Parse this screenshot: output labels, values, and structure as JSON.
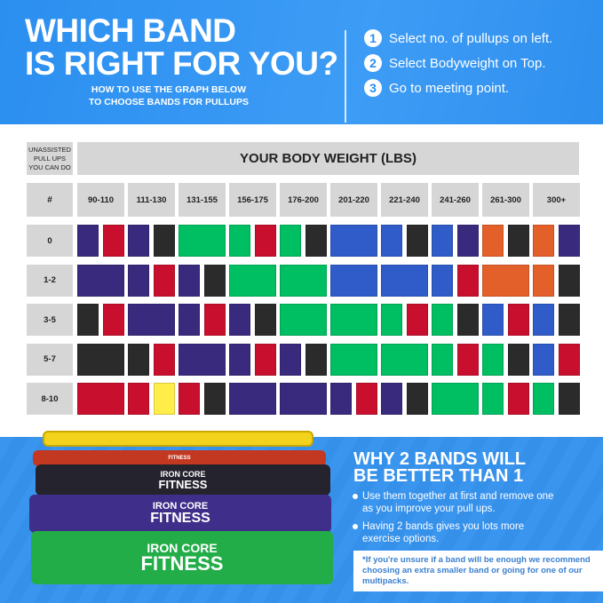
{
  "header": {
    "title_line1": "WHICH BAND",
    "title_line2": "IS RIGHT FOR YOU?",
    "subtitle_line1": "HOW TO USE THE GRAPH BELOW",
    "subtitle_line2": "TO CHOOSE BANDS FOR PULLUPS",
    "steps": [
      {
        "num": "1",
        "text": "Select no. of pullups on left."
      },
      {
        "num": "2",
        "text": "Select Bodyweight on Top."
      },
      {
        "num": "3",
        "text": "Go to meeting point."
      }
    ]
  },
  "chart_data": {
    "type": "table",
    "corner_label": "UNASSISTED PULL UPS YOU CAN DO",
    "column_header": "YOUR BODY WEIGHT (LBS)",
    "row_header": "#",
    "columns": [
      "90-110",
      "111-130",
      "131-155",
      "156-175",
      "176-200",
      "201-220",
      "221-240",
      "241-260",
      "261-300",
      "300+"
    ],
    "colors": {
      "purple": "#3a2a7e",
      "red": "#c8102e",
      "black": "#2b2b2b",
      "green": "#00bf63",
      "blue": "#2f5cc8",
      "orange": "#e4602a",
      "yellow": "#ffed4a"
    },
    "rows": [
      {
        "label": "0",
        "cells": [
          [
            "purple",
            "red"
          ],
          [
            "purple",
            "black"
          ],
          [
            "green"
          ],
          [
            "green",
            "red"
          ],
          [
            "green",
            "black"
          ],
          [
            "blue"
          ],
          [
            "blue",
            "black"
          ],
          [
            "blue",
            "purple"
          ],
          [
            "orange",
            "black"
          ],
          [
            "orange",
            "purple"
          ]
        ]
      },
      {
        "label": "1-2",
        "cells": [
          [
            "purple"
          ],
          [
            "purple",
            "red"
          ],
          [
            "purple",
            "black"
          ],
          [
            "green"
          ],
          [
            "green"
          ],
          [
            "blue"
          ],
          [
            "blue"
          ],
          [
            "blue",
            "red"
          ],
          [
            "orange"
          ],
          [
            "orange",
            "black"
          ]
        ]
      },
      {
        "label": "3-5",
        "cells": [
          [
            "black",
            "red"
          ],
          [
            "purple"
          ],
          [
            "purple",
            "red"
          ],
          [
            "purple",
            "black"
          ],
          [
            "green"
          ],
          [
            "green"
          ],
          [
            "green",
            "red"
          ],
          [
            "green",
            "black"
          ],
          [
            "blue",
            "red"
          ],
          [
            "blue",
            "black"
          ]
        ]
      },
      {
        "label": "5-7",
        "cells": [
          [
            "black"
          ],
          [
            "black",
            "red"
          ],
          [
            "purple"
          ],
          [
            "purple",
            "red"
          ],
          [
            "purple",
            "black"
          ],
          [
            "green"
          ],
          [
            "green"
          ],
          [
            "green",
            "red"
          ],
          [
            "green",
            "black"
          ],
          [
            "blue",
            "red"
          ]
        ]
      },
      {
        "label": "8-10",
        "cells": [
          [
            "red"
          ],
          [
            "red",
            "yellow"
          ],
          [
            "red",
            "black"
          ],
          [
            "purple"
          ],
          [
            "purple"
          ],
          [
            "purple",
            "red"
          ],
          [
            "purple",
            "black"
          ],
          [
            "green"
          ],
          [
            "green",
            "red"
          ],
          [
            "green",
            "black"
          ]
        ]
      }
    ]
  },
  "product": {
    "brand_line1": "IRON CORE",
    "brand_line2": "FITNESS"
  },
  "why": {
    "title_line1": "WHY 2 BANDS WILL",
    "title_line2": "BE BETTER THAN 1",
    "bullets": [
      "Use them together at first and remove one as you improve your pull ups.",
      "Having 2 bands gives you lots more exercise options."
    ],
    "note": "*If you're unsure if a band will be enough we recommend choosing an extra smaller band or going for one of our multipacks."
  }
}
